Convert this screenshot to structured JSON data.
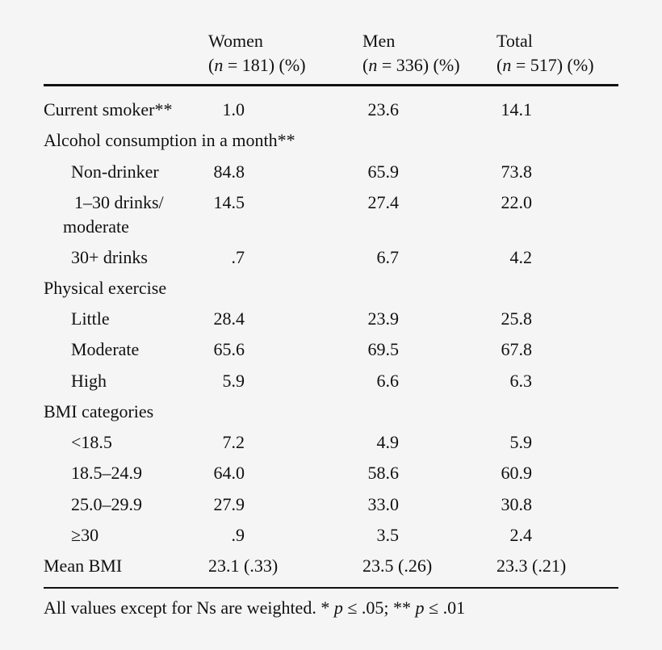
{
  "header": {
    "columns": [
      {
        "title": "Women",
        "n_prefix": "(",
        "n_var": "n",
        "n_rest": " = 181) (%)"
      },
      {
        "title": "Men",
        "n_prefix": "(",
        "n_var": "n",
        "n_rest": " = 336) (%)"
      },
      {
        "title": "Total",
        "n_prefix": "(",
        "n_var": "n",
        "n_rest": " = 517) (%)"
      }
    ]
  },
  "rows": [
    {
      "label": "Current smoker**",
      "indent": false,
      "women": "1.0",
      "men": "23.6",
      "total": "14.1"
    },
    {
      "label": "Alcohol consumption in a month**",
      "indent": false,
      "women": "",
      "men": "",
      "total": ""
    },
    {
      "label": "Non-drinker",
      "indent": true,
      "women": "84.8",
      "men": "65.9",
      "total": "73.8"
    },
    {
      "label": "1–30 drinks/",
      "label2": "moderate",
      "indent": true,
      "women": "14.5",
      "men": "27.4",
      "total": "22.0"
    },
    {
      "label": "30+ drinks",
      "indent": true,
      "women": ".7",
      "men": "6.7",
      "total": "4.2"
    },
    {
      "label": "Physical exercise",
      "indent": false,
      "women": "",
      "men": "",
      "total": ""
    },
    {
      "label": "Little",
      "indent": true,
      "women": "28.4",
      "men": "23.9",
      "total": "25.8"
    },
    {
      "label": "Moderate",
      "indent": true,
      "women": "65.6",
      "men": "69.5",
      "total": "67.8"
    },
    {
      "label": "High",
      "indent": true,
      "women": "5.9",
      "men": "6.6",
      "total": "6.3"
    },
    {
      "label": "BMI categories",
      "indent": false,
      "women": "",
      "men": "",
      "total": ""
    },
    {
      "label": "<18.5",
      "indent": true,
      "women": "7.2",
      "men": "4.9",
      "total": "5.9"
    },
    {
      "label": "18.5–24.9",
      "indent": true,
      "women": "64.0",
      "men": "58.6",
      "total": "60.9"
    },
    {
      "label": "25.0–29.9",
      "indent": true,
      "women": "27.9",
      "men": "33.0",
      "total": "30.8"
    },
    {
      "label": "≥30",
      "indent": true,
      "women": ".9",
      "men": "3.5",
      "total": "2.4"
    },
    {
      "label": "Mean BMI",
      "indent": false,
      "women": "23.1 (.33)",
      "men": "23.5 (.26)",
      "total": "23.3 (.21)"
    }
  ],
  "footnote": {
    "text1": "All values except for Ns are weighted. * ",
    "p1": "p",
    "text2": " ≤ .05; ** ",
    "p2": "p",
    "text3": " ≤ .01"
  }
}
